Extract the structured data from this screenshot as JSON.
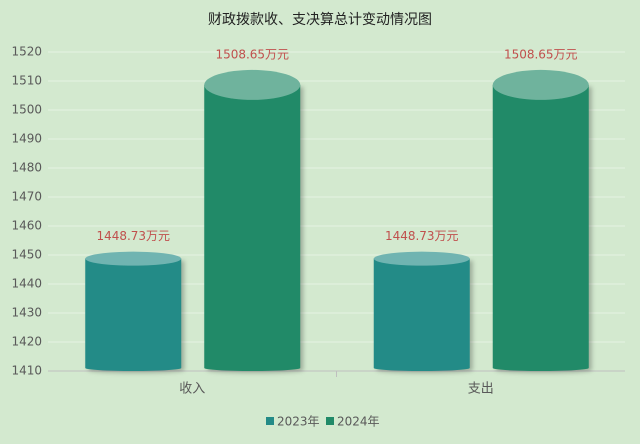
{
  "chart_data": {
    "type": "cylinder_bar",
    "title": "财政拨款收、支决算总计变动情况图",
    "categories": [
      "收入",
      "支出"
    ],
    "series": [
      {
        "name": "2023年",
        "color": "#238b87",
        "values": [
          1448.73,
          1448.73
        ],
        "value_labels": [
          "1448.73万元",
          "1448.73万元"
        ]
      },
      {
        "name": "2024年",
        "color": "#218a68",
        "values": [
          1508.65,
          1508.65
        ],
        "value_labels": [
          "1508.65万元",
          "1508.65万元"
        ]
      }
    ],
    "ylim": [
      1410,
      1520
    ],
    "yticks": [
      1410,
      1420,
      1430,
      1440,
      1450,
      1460,
      1470,
      1480,
      1490,
      1500,
      1510,
      1520
    ],
    "grid": true,
    "legend": "bottom"
  }
}
